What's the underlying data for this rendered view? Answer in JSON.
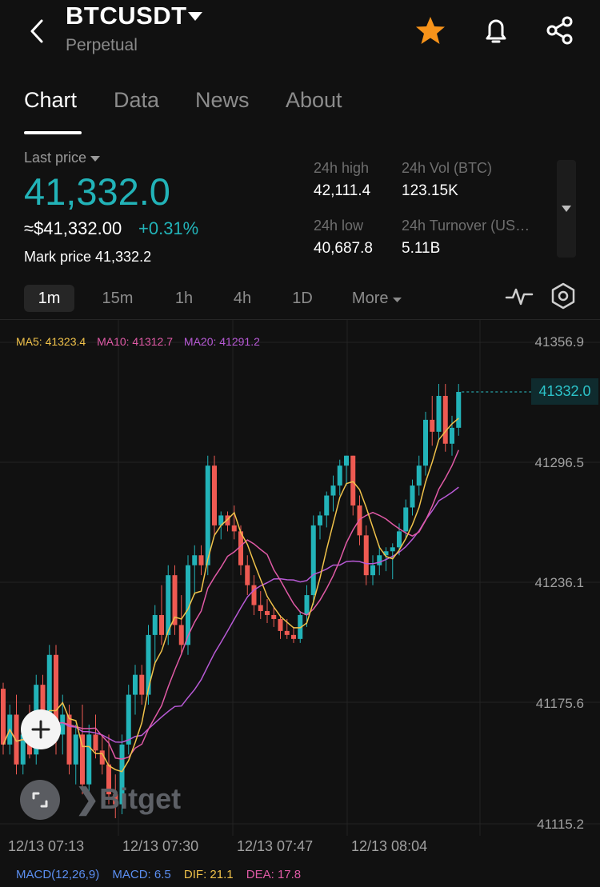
{
  "header": {
    "back_icon": "chevron-left-icon",
    "title": "BTCUSDT",
    "subtitle": "Perpetual",
    "favorite_icon": "star-icon",
    "favorite_color": "#f7931a",
    "alert_icon": "bell-icon",
    "share_icon": "share-icon"
  },
  "tabs": [
    {
      "label": "Chart",
      "active": true
    },
    {
      "label": "Data",
      "active": false
    },
    {
      "label": "News",
      "active": false
    },
    {
      "label": "About",
      "active": false
    }
  ],
  "price": {
    "label": "Last price",
    "value": "41,332.0",
    "usd": "≈$41,332.00",
    "change": "+0.31%",
    "mark": "Mark price 41,332.2",
    "accent": "#22b3b8"
  },
  "stats": {
    "high_label": "24h high",
    "high": "42,111.4",
    "vol_label": "24h Vol (BTC)",
    "vol": "123.15K",
    "low_label": "24h low",
    "low": "40,687.8",
    "turnover_label": "24h Turnover (US…",
    "turnover": "5.11B"
  },
  "intervals": {
    "items": [
      {
        "label": "1m",
        "active": true
      },
      {
        "label": "15m",
        "active": false
      },
      {
        "label": "1h",
        "active": false
      },
      {
        "label": "4h",
        "active": false
      },
      {
        "label": "1D",
        "active": false
      }
    ],
    "more": "More",
    "indicator_icon": "pulse-icon",
    "settings_icon": "hexagon-settings-icon"
  },
  "ma_legend": {
    "ma5": "MA5: 41323.4",
    "ma10": "MA10: 41312.7",
    "ma20": "MA20: 41291.2"
  },
  "macd_legend": {
    "label": "MACD(12,26,9)",
    "macd": "MACD: 6.5",
    "dif": "DIF: 21.1",
    "dea": "DEA: 17.8"
  },
  "watermark": "Bitget",
  "zoom_icon": "plus-icon",
  "fullscreen_icon": "fullscreen-icon",
  "chart_data": {
    "type": "candlestick",
    "up_color": "#22b3b8",
    "down_color": "#ee5a52",
    "ma_colors": {
      "ma5": "#f0c24a",
      "ma10": "#e05aa6",
      "ma20": "#b85ad6"
    },
    "y_ticks": [
      "41356.9",
      "41296.5",
      "41236.1",
      "41175.6",
      "41115.2"
    ],
    "ylim": [
      41115.2,
      41356.9
    ],
    "x_ticks": [
      "12/13 07:13",
      "12/13 07:30",
      "12/13 07:47",
      "12/13 08:04"
    ],
    "last_price": "41332.0",
    "candles": [
      {
        "o": 41183,
        "h": 41186,
        "l": 41150,
        "c": 41155
      },
      {
        "o": 41155,
        "h": 41175,
        "l": 41150,
        "c": 41170
      },
      {
        "o": 41170,
        "h": 41180,
        "l": 41140,
        "c": 41145
      },
      {
        "o": 41145,
        "h": 41165,
        "l": 41140,
        "c": 41160
      },
      {
        "o": 41160,
        "h": 41175,
        "l": 41148,
        "c": 41150
      },
      {
        "o": 41150,
        "h": 41190,
        "l": 41145,
        "c": 41185
      },
      {
        "o": 41185,
        "h": 41190,
        "l": 41160,
        "c": 41165
      },
      {
        "o": 41165,
        "h": 41205,
        "l": 41160,
        "c": 41200
      },
      {
        "o": 41200,
        "h": 41205,
        "l": 41150,
        "c": 41160
      },
      {
        "o": 41160,
        "h": 41180,
        "l": 41150,
        "c": 41170
      },
      {
        "o": 41170,
        "h": 41175,
        "l": 41140,
        "c": 41145
      },
      {
        "o": 41145,
        "h": 41165,
        "l": 41135,
        "c": 41160
      },
      {
        "o": 41160,
        "h": 41175,
        "l": 41130,
        "c": 41135
      },
      {
        "o": 41135,
        "h": 41165,
        "l": 41130,
        "c": 41160
      },
      {
        "o": 41160,
        "h": 41170,
        "l": 41148,
        "c": 41152
      },
      {
        "o": 41152,
        "h": 41160,
        "l": 41140,
        "c": 41145
      },
      {
        "o": 41145,
        "h": 41160,
        "l": 41125,
        "c": 41130
      },
      {
        "o": 41130,
        "h": 41140,
        "l": 41118,
        "c": 41125
      },
      {
        "o": 41125,
        "h": 41160,
        "l": 41120,
        "c": 41155
      },
      {
        "o": 41155,
        "h": 41185,
        "l": 41150,
        "c": 41180
      },
      {
        "o": 41180,
        "h": 41195,
        "l": 41170,
        "c": 41190
      },
      {
        "o": 41190,
        "h": 41195,
        "l": 41175,
        "c": 41180
      },
      {
        "o": 41180,
        "h": 41215,
        "l": 41175,
        "c": 41210
      },
      {
        "o": 41210,
        "h": 41225,
        "l": 41195,
        "c": 41220
      },
      {
        "o": 41220,
        "h": 41235,
        "l": 41205,
        "c": 41210
      },
      {
        "o": 41210,
        "h": 41245,
        "l": 41205,
        "c": 41240
      },
      {
        "o": 41240,
        "h": 41245,
        "l": 41210,
        "c": 41215
      },
      {
        "o": 41215,
        "h": 41230,
        "l": 41200,
        "c": 41205
      },
      {
        "o": 41205,
        "h": 41250,
        "l": 41200,
        "c": 41245
      },
      {
        "o": 41245,
        "h": 41255,
        "l": 41230,
        "c": 41250
      },
      {
        "o": 41250,
        "h": 41255,
        "l": 41240,
        "c": 41245
      },
      {
        "o": 41245,
        "h": 41300,
        "l": 41240,
        "c": 41295
      },
      {
        "o": 41295,
        "h": 41300,
        "l": 41260,
        "c": 41265
      },
      {
        "o": 41265,
        "h": 41272,
        "l": 41258,
        "c": 41270
      },
      {
        "o": 41270,
        "h": 41272,
        "l": 41262,
        "c": 41265
      },
      {
        "o": 41265,
        "h": 41275,
        "l": 41258,
        "c": 41262
      },
      {
        "o": 41262,
        "h": 41265,
        "l": 41240,
        "c": 41245
      },
      {
        "o": 41245,
        "h": 41250,
        "l": 41230,
        "c": 41235
      },
      {
        "o": 41235,
        "h": 41240,
        "l": 41220,
        "c": 41225
      },
      {
        "o": 41225,
        "h": 41232,
        "l": 41218,
        "c": 41222
      },
      {
        "o": 41222,
        "h": 41228,
        "l": 41216,
        "c": 41220
      },
      {
        "o": 41220,
        "h": 41224,
        "l": 41214,
        "c": 41218
      },
      {
        "o": 41218,
        "h": 41220,
        "l": 41208,
        "c": 41212
      },
      {
        "o": 41212,
        "h": 41218,
        "l": 41208,
        "c": 41210
      },
      {
        "o": 41210,
        "h": 41214,
        "l": 41206,
        "c": 41208
      },
      {
        "o": 41208,
        "h": 41222,
        "l": 41206,
        "c": 41220
      },
      {
        "o": 41220,
        "h": 41235,
        "l": 41214,
        "c": 41230
      },
      {
        "o": 41230,
        "h": 41270,
        "l": 41225,
        "c": 41265
      },
      {
        "o": 41265,
        "h": 41272,
        "l": 41258,
        "c": 41270
      },
      {
        "o": 41270,
        "h": 41282,
        "l": 41264,
        "c": 41280
      },
      {
        "o": 41280,
        "h": 41290,
        "l": 41272,
        "c": 41285
      },
      {
        "o": 41285,
        "h": 41298,
        "l": 41280,
        "c": 41295
      },
      {
        "o": 41295,
        "h": 41300,
        "l": 41285,
        "c": 41300
      },
      {
        "o": 41300,
        "h": 41300,
        "l": 41270,
        "c": 41275
      },
      {
        "o": 41275,
        "h": 41280,
        "l": 41255,
        "c": 41260
      },
      {
        "o": 41260,
        "h": 41265,
        "l": 41235,
        "c": 41240
      },
      {
        "o": 41240,
        "h": 41250,
        "l": 41235,
        "c": 41245
      },
      {
        "o": 41245,
        "h": 41255,
        "l": 41240,
        "c": 41250
      },
      {
        "o": 41250,
        "h": 41254,
        "l": 41242,
        "c": 41252
      },
      {
        "o": 41252,
        "h": 41256,
        "l": 41238,
        "c": 41254
      },
      {
        "o": 41254,
        "h": 41266,
        "l": 41250,
        "c": 41262
      },
      {
        "o": 41262,
        "h": 41278,
        "l": 41258,
        "c": 41274
      },
      {
        "o": 41274,
        "h": 41288,
        "l": 41270,
        "c": 41285
      },
      {
        "o": 41285,
        "h": 41300,
        "l": 41280,
        "c": 41295
      },
      {
        "o": 41295,
        "h": 41322,
        "l": 41290,
        "c": 41318
      },
      {
        "o": 41318,
        "h": 41330,
        "l": 41305,
        "c": 41312
      },
      {
        "o": 41312,
        "h": 41336,
        "l": 41308,
        "c": 41330
      },
      {
        "o": 41330,
        "h": 41336,
        "l": 41302,
        "c": 41306
      },
      {
        "o": 41306,
        "h": 41320,
        "l": 41300,
        "c": 41314
      },
      {
        "o": 41314,
        "h": 41336,
        "l": 41310,
        "c": 41332
      }
    ]
  }
}
